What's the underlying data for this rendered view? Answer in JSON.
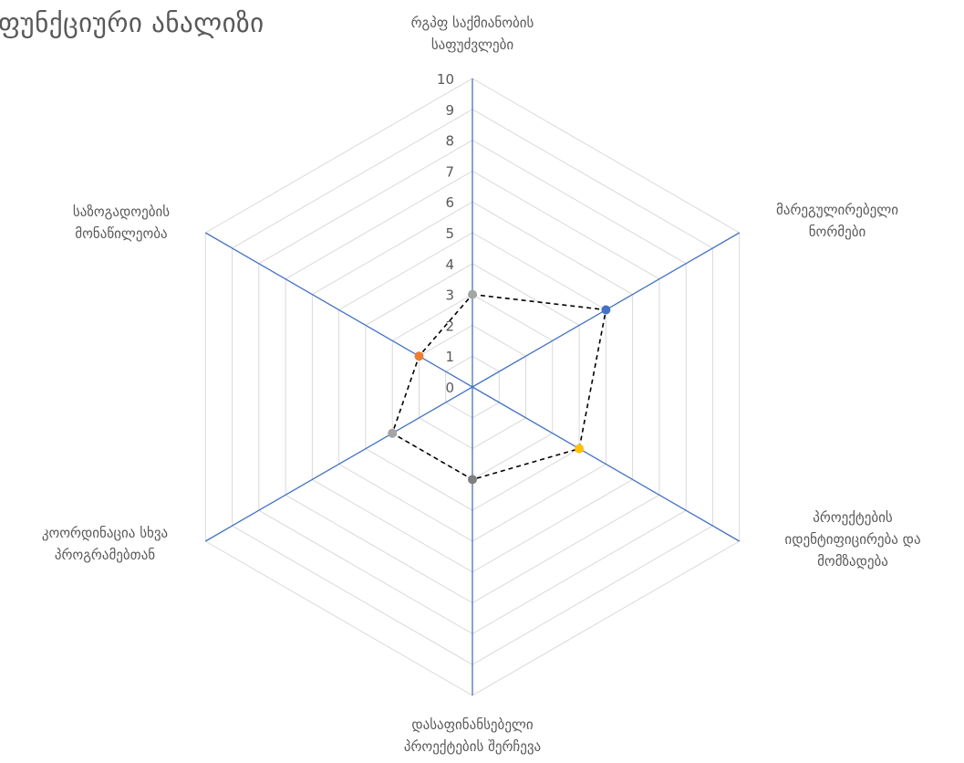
{
  "chart_data": {
    "type": "radar",
    "title": "ფუნქციური ანალიზი",
    "categories": [
      [
        "რგპფ საქმიანობის",
        "საფუძვლები"
      ],
      [
        "მარეგულირებელი",
        "ნორმები"
      ],
      [
        "პროექტების",
        "იდენტიფიცირება და",
        "მომზადება"
      ],
      [
        "დასაფინანსებელი",
        "პროექტების შერჩევა"
      ],
      [
        "კოორდინაცია სხვა",
        "პროგრამებთან"
      ],
      [
        "საზოგადოების",
        "მონაწილეობა"
      ]
    ],
    "r_ticks": [
      "0",
      "1",
      "2",
      "3",
      "4",
      "5",
      "6",
      "7",
      "8",
      "9",
      "10"
    ],
    "rlim": [
      0,
      10
    ],
    "series": [
      {
        "values": [
          3,
          5,
          4,
          3,
          3,
          2
        ],
        "line_color": "#000000",
        "line_style": "dashed",
        "marker_colors": [
          "#a5a5a5",
          "#4472c4",
          "#ffc000",
          "#7f7f7f",
          "#a5a5a5",
          "#ed7d31"
        ]
      }
    ],
    "grid": true,
    "grid_color": "#d9d9d9",
    "axis_color": "#4472c4",
    "legend": "none"
  }
}
